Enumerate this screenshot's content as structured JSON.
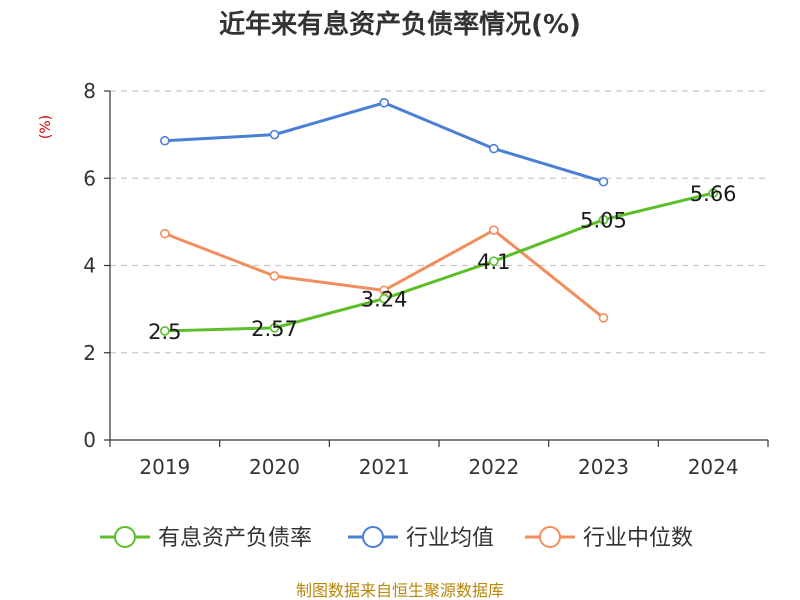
{
  "chart_data": {
    "type": "line",
    "title": "近年来有息资产负债率情况(%)",
    "ylabel": "(%)",
    "xlabel": "",
    "categories": [
      "2019",
      "2020",
      "2021",
      "2022",
      "2023",
      "2024"
    ],
    "ylim": [
      0,
      8
    ],
    "yticks": [
      0,
      2,
      4,
      6,
      8
    ],
    "grid": true,
    "legend_position": "bottom",
    "series": [
      {
        "name": "有息资产负债率",
        "color": "#5cbf2a",
        "values": [
          2.5,
          2.57,
          3.24,
          4.1,
          5.05,
          5.66
        ],
        "labels": [
          "2.5",
          "2.57",
          "3.24",
          "4.1",
          "5.05",
          "5.66"
        ]
      },
      {
        "name": "行业均值",
        "color": "#4a7fd6",
        "values": [
          6.86,
          7.0,
          7.73,
          6.68,
          5.92,
          null
        ]
      },
      {
        "name": "行业中位数",
        "color": "#f28e5c",
        "values": [
          4.73,
          3.76,
          3.43,
          4.81,
          2.8,
          null
        ]
      }
    ]
  },
  "source": "制图数据来自恒生聚源数据库"
}
